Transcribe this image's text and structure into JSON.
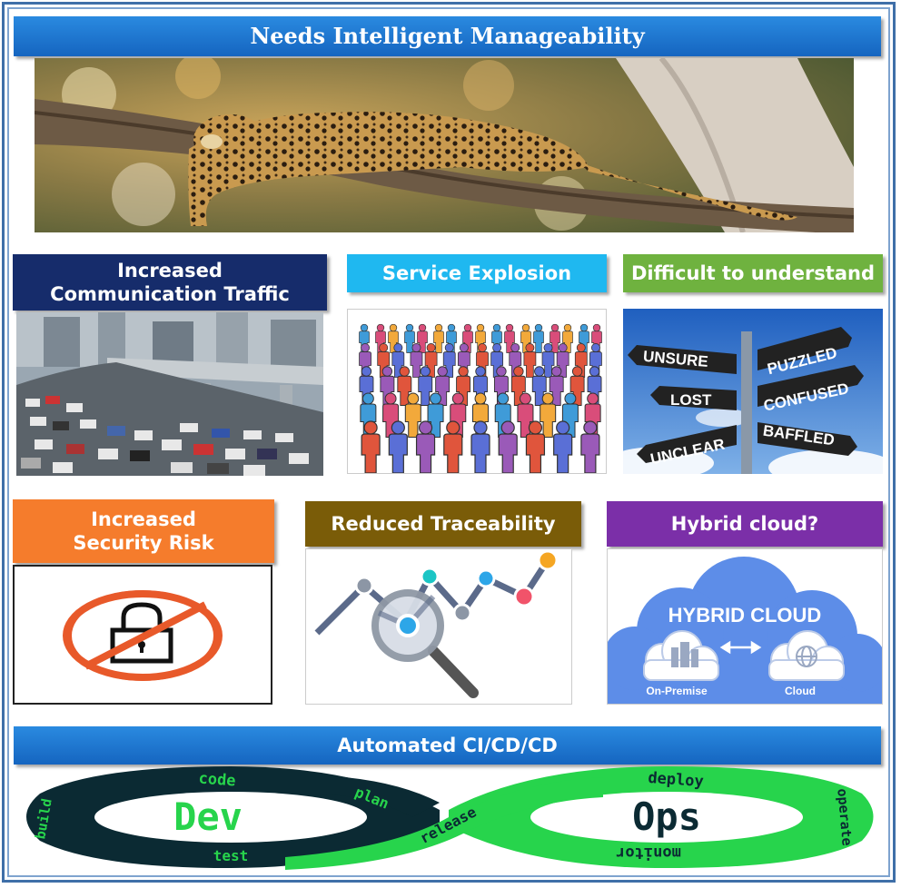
{
  "top": {
    "title": "Needs Intelligent Manageability"
  },
  "row1": [
    {
      "title_line1": "Increased",
      "title_line2": "Communication Traffic"
    },
    {
      "title": "Service Explosion"
    },
    {
      "title": "Difficult to understand",
      "signs": {
        "unsure": "UNSURE",
        "puzzled": "PUZZLED",
        "lost": "LOST",
        "confused": "CONFUSED",
        "unclear": "UNCLEAR",
        "baffled": "BAFFLED"
      }
    }
  ],
  "row2": [
    {
      "title_line1": "Increased",
      "title_line2": "Security Risk"
    },
    {
      "title": "Reduced Traceability"
    },
    {
      "title": "Hybrid cloud?",
      "cloud": {
        "heading": "HYBRID CLOUD",
        "left": "On-Premise",
        "right": "Cloud"
      }
    }
  ],
  "bottom": {
    "title": "Automated CI/CD/CD",
    "loop": {
      "dev": "Dev",
      "ops": "Ops",
      "code": "code",
      "plan": "plan",
      "build": "build",
      "test": "test",
      "release": "release",
      "deploy": "deploy",
      "operate": "operate",
      "monitor": "monitor"
    }
  },
  "colors": {
    "blue_header": "#1976d2",
    "navy_header": "#162c6b",
    "cyan_header": "#1fb8f0",
    "green_header": "#6fb23f",
    "orange_header": "#f57c2c",
    "olive_header": "#7a5c08",
    "purple_header": "#7b2fa8",
    "devops_green": "#27d44c",
    "devops_dark": "#0b2a33"
  }
}
